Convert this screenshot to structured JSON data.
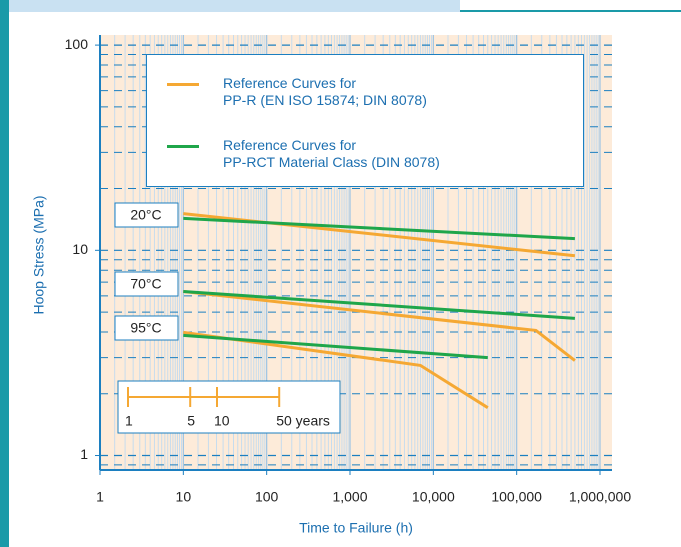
{
  "chart_data": {
    "type": "line",
    "x_log": true,
    "y_log": true,
    "xlabel": "Time to Failure (h)",
    "ylabel": "Hoop Stress (MPa)",
    "xlim": [
      1,
      1000000
    ],
    "ylim": [
      0.85,
      112
    ],
    "xticks": [
      1,
      10,
      100,
      {
        "value": 1000,
        "label": "1,000"
      },
      {
        "value": 10000,
        "label": "10,000"
      },
      {
        "value": 100000,
        "label": "100,000"
      },
      {
        "value": 1000000,
        "label": "1,000,000"
      }
    ],
    "yticks": [
      1,
      10,
      100
    ],
    "grid": true,
    "minor_grid": true,
    "temperatures": [
      "20°C",
      "70°C",
      "95°C"
    ],
    "series": [
      {
        "name": "Reference Curves for\nPP-R (EN ISO 15874; DIN 8078)",
        "color": "#f5a833",
        "x": [
          10,
          500000,
          null,
          10,
          170000,
          500000,
          null,
          10,
          7000,
          45000
        ],
        "values": [
          15.1,
          9.4,
          null,
          6.3,
          4.07,
          2.9,
          null,
          3.98,
          2.75,
          1.71
        ]
      },
      {
        "name": "Reference Curves for\nPP-RCT Material Class (DIN 8078)",
        "color": "#1fa64a",
        "x": [
          10,
          500000,
          null,
          10,
          500000,
          null,
          10,
          45000
        ],
        "values": [
          14.3,
          11.4,
          null,
          6.3,
          4.66,
          null,
          3.85,
          3.0
        ]
      }
    ],
    "year_scale": {
      "color": "#f5a833",
      "ticks": [
        1,
        5,
        10,
        {
          "value": 50,
          "label": "50 years"
        }
      ]
    }
  }
}
